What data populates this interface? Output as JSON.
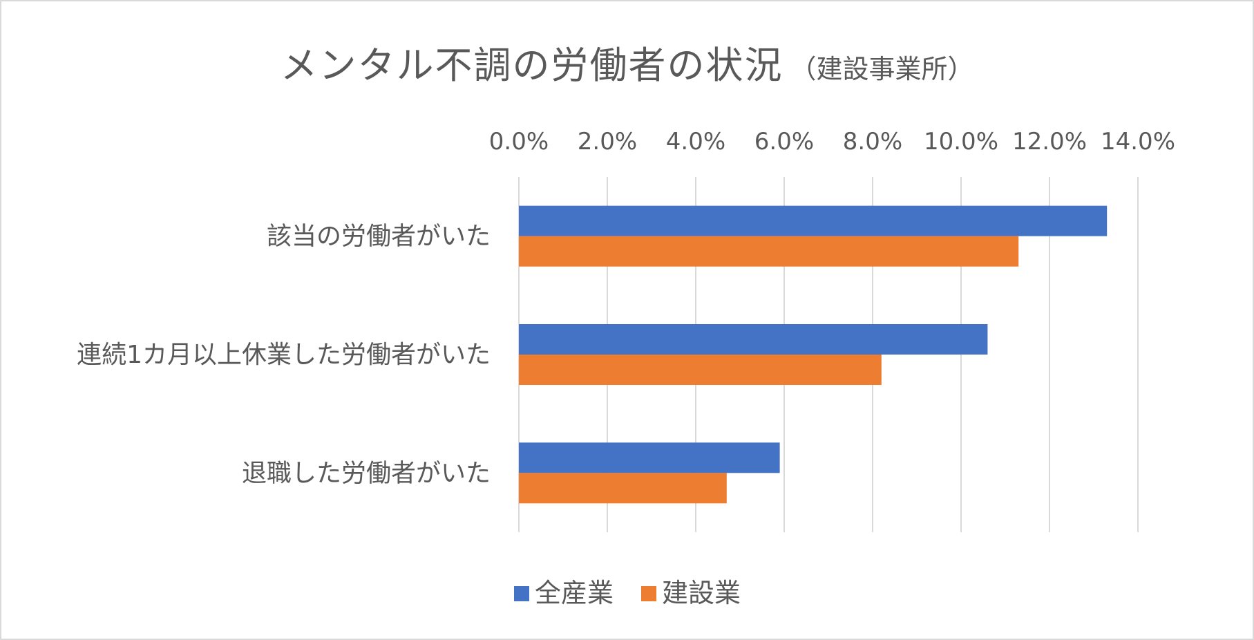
{
  "chart_data": {
    "type": "bar",
    "orientation": "horizontal",
    "title": "メンタル不調の労働者の状況",
    "subtitle": "（建設事業所）",
    "categories": [
      "該当の労働者がいた",
      "連続1カ月以上休業した労働者がいた",
      "退職した労働者がいた"
    ],
    "series": [
      {
        "name": "全産業",
        "color": "#4472c4",
        "values": [
          13.3,
          10.6,
          5.9
        ]
      },
      {
        "name": "建設業",
        "color": "#ed7d31",
        "values": [
          11.3,
          8.2,
          4.7
        ]
      }
    ],
    "xlim": [
      0,
      14
    ],
    "x_ticks": [
      "0.0%",
      "2.0%",
      "4.0%",
      "6.0%",
      "8.0%",
      "10.0%",
      "12.0%",
      "14.0%"
    ],
    "x_axis_position": "top",
    "grid": true,
    "legend": "bottom"
  }
}
